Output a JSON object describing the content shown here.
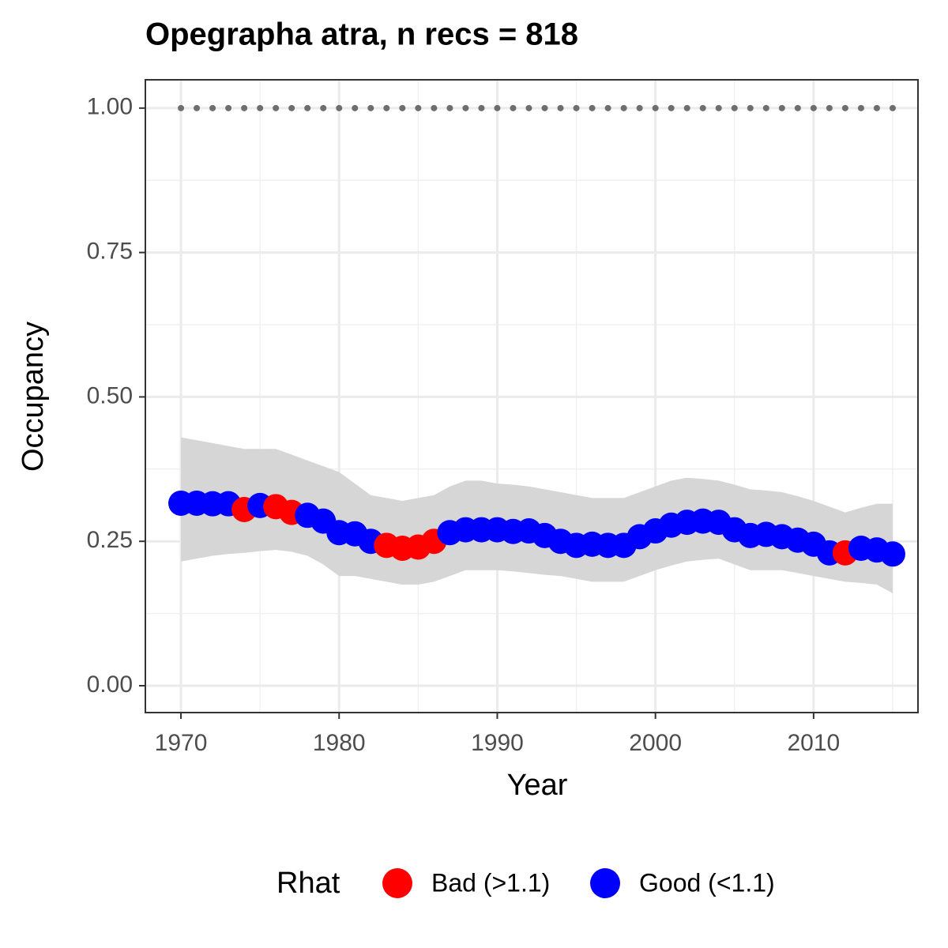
{
  "chart_data": {
    "type": "occupancy",
    "title": "Opegrapha atra, n recs = 818",
    "x_label": "Year",
    "y_label": "Occupancy",
    "legend_title": "Rhat",
    "legend": [
      {
        "name": "Bad (>1.1)",
        "color": "#ff0000"
      },
      {
        "name": "Good (<1.1)",
        "color": "#0000ff"
      }
    ],
    "x": [
      1970,
      1971,
      1972,
      1973,
      1974,
      1975,
      1976,
      1977,
      1978,
      1979,
      1980,
      1981,
      1982,
      1983,
      1984,
      1985,
      1986,
      1987,
      1988,
      1989,
      1990,
      1991,
      1992,
      1993,
      1994,
      1995,
      1996,
      1997,
      1998,
      1999,
      2000,
      2001,
      2002,
      2003,
      2004,
      2005,
      2006,
      2007,
      2008,
      2009,
      2010,
      2011,
      2012,
      2013,
      2014,
      2015
    ],
    "values": [
      0.316,
      0.316,
      0.315,
      0.315,
      0.305,
      0.312,
      0.31,
      0.3,
      0.295,
      0.285,
      0.265,
      0.263,
      0.25,
      0.243,
      0.238,
      0.24,
      0.25,
      0.265,
      0.27,
      0.27,
      0.27,
      0.267,
      0.268,
      0.26,
      0.25,
      0.243,
      0.245,
      0.243,
      0.243,
      0.258,
      0.268,
      0.278,
      0.283,
      0.285,
      0.283,
      0.27,
      0.26,
      0.262,
      0.258,
      0.252,
      0.245,
      0.23,
      0.23,
      0.238,
      0.235,
      0.228
    ],
    "rhat": [
      "Good (<1.1)",
      "Good (<1.1)",
      "Good (<1.1)",
      "Good (<1.1)",
      "Bad (>1.1)",
      "Good (<1.1)",
      "Bad (>1.1)",
      "Bad (>1.1)",
      "Good (<1.1)",
      "Good (<1.1)",
      "Good (<1.1)",
      "Good (<1.1)",
      "Good (<1.1)",
      "Bad (>1.1)",
      "Bad (>1.1)",
      "Bad (>1.1)",
      "Bad (>1.1)",
      "Good (<1.1)",
      "Good (<1.1)",
      "Good (<1.1)",
      "Good (<1.1)",
      "Good (<1.1)",
      "Good (<1.1)",
      "Good (<1.1)",
      "Good (<1.1)",
      "Good (<1.1)",
      "Good (<1.1)",
      "Good (<1.1)",
      "Good (<1.1)",
      "Good (<1.1)",
      "Good (<1.1)",
      "Good (<1.1)",
      "Good (<1.1)",
      "Good (<1.1)",
      "Good (<1.1)",
      "Good (<1.1)",
      "Good (<1.1)",
      "Good (<1.1)",
      "Good (<1.1)",
      "Good (<1.1)",
      "Good (<1.1)",
      "Good (<1.1)",
      "Bad (>1.1)",
      "Good (<1.1)",
      "Good (<1.1)",
      "Good (<1.1)"
    ],
    "upper": [
      0.43,
      0.425,
      0.42,
      0.415,
      0.41,
      0.41,
      0.41,
      0.4,
      0.39,
      0.38,
      0.37,
      0.35,
      0.33,
      0.325,
      0.32,
      0.325,
      0.33,
      0.345,
      0.355,
      0.355,
      0.35,
      0.348,
      0.345,
      0.34,
      0.335,
      0.33,
      0.325,
      0.325,
      0.325,
      0.335,
      0.345,
      0.355,
      0.36,
      0.358,
      0.355,
      0.348,
      0.34,
      0.338,
      0.335,
      0.328,
      0.32,
      0.31,
      0.3,
      0.308,
      0.315,
      0.315
    ],
    "lower": [
      0.215,
      0.22,
      0.225,
      0.228,
      0.23,
      0.233,
      0.235,
      0.232,
      0.225,
      0.21,
      0.19,
      0.19,
      0.185,
      0.18,
      0.175,
      0.175,
      0.18,
      0.19,
      0.2,
      0.2,
      0.2,
      0.198,
      0.195,
      0.192,
      0.19,
      0.185,
      0.18,
      0.18,
      0.18,
      0.19,
      0.2,
      0.208,
      0.215,
      0.218,
      0.22,
      0.21,
      0.2,
      0.2,
      0.2,
      0.195,
      0.19,
      0.185,
      0.18,
      0.178,
      0.175,
      0.16
    ],
    "band_color": "#d6d6d6",
    "naive": [
      1,
      1,
      1,
      1,
      1,
      1,
      1,
      1,
      1,
      1,
      1,
      1,
      1,
      1,
      1,
      1,
      1,
      1,
      1,
      1,
      1,
      1,
      1,
      1,
      1,
      1,
      1,
      1,
      1,
      1,
      1,
      1,
      1,
      1,
      1,
      1,
      1,
      1,
      1,
      1,
      1,
      1,
      1,
      1,
      1,
      1
    ],
    "naive_color": "#6e6e6e",
    "xlim": [
      1967.75,
      2016.6
    ],
    "ylim": [
      -0.0465,
      1.049
    ],
    "xticks": [
      1970,
      1980,
      1990,
      2000,
      2010
    ],
    "yticks": [
      {
        "value": 0,
        "label": "0.00"
      },
      {
        "value": 0.25,
        "label": "0.25"
      },
      {
        "value": 0.5,
        "label": "0.50"
      },
      {
        "value": 0.75,
        "label": "0.75"
      },
      {
        "value": 1,
        "label": "1.00"
      }
    ],
    "x_minor_grid": [
      1975,
      1985,
      1995,
      2005,
      2015
    ],
    "y_minor_grid": [
      0.125,
      0.375,
      0.625,
      0.875
    ],
    "grid": true
  }
}
